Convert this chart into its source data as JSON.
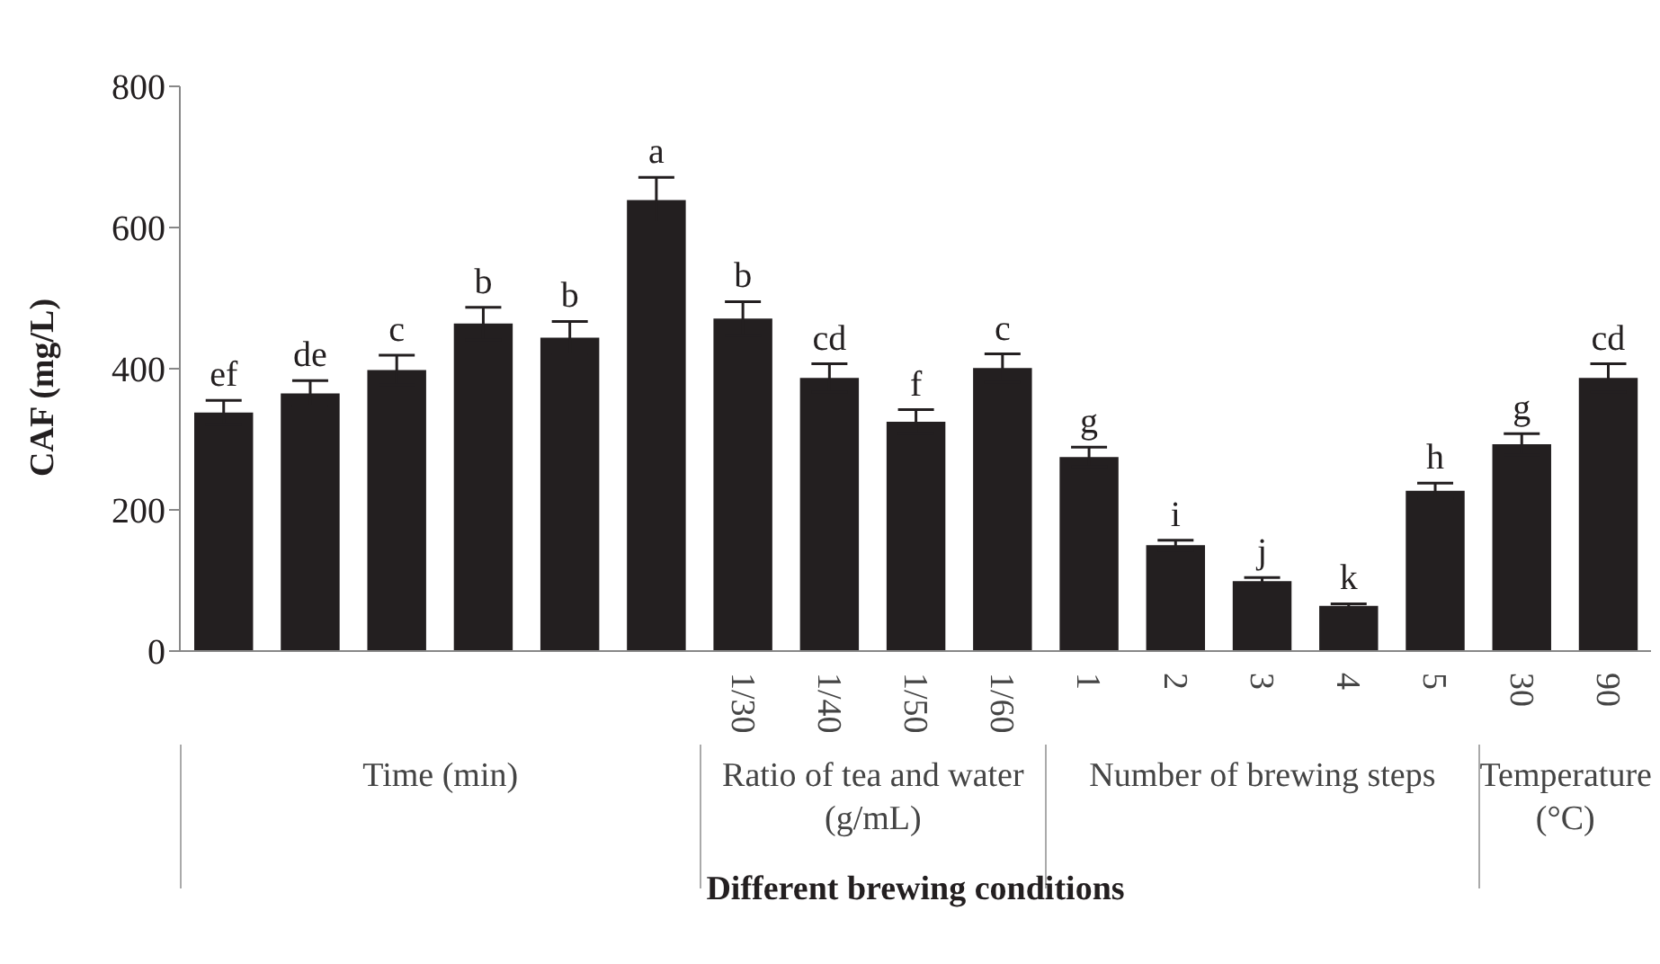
{
  "chart_data": {
    "type": "bar",
    "ylabel": "CAF (mg/L)",
    "xlabel": "Different brewing conditions",
    "categories": [
      null,
      null,
      null,
      null,
      null,
      null,
      "1/30",
      "1/40",
      "1/50",
      "1/60",
      "1",
      "2",
      "3",
      "4",
      "5",
      "30",
      "90"
    ],
    "values": [
      338,
      365,
      398,
      464,
      444,
      639,
      471,
      387,
      325,
      401,
      275,
      150,
      99,
      64,
      227,
      293,
      387
    ],
    "errors": [
      17,
      18,
      21,
      23,
      23,
      32,
      24,
      20,
      17,
      20,
      14,
      7,
      5,
      3,
      11,
      15,
      20
    ],
    "value_labels": [
      "ef",
      "de",
      "c",
      "b",
      "b",
      "a",
      "b",
      "cd",
      "f",
      "c",
      "g",
      "i",
      "j",
      "k",
      "h",
      "g",
      "cd"
    ],
    "color": "#231f20",
    "ylim": [
      0,
      800
    ],
    "yticks": [
      0,
      200,
      400,
      600,
      800
    ],
    "annotations": [
      "Time (min)",
      "Ratio of tea and water (g/mL)",
      "Number of brewing steps",
      "Temperature (°C)"
    ]
  }
}
